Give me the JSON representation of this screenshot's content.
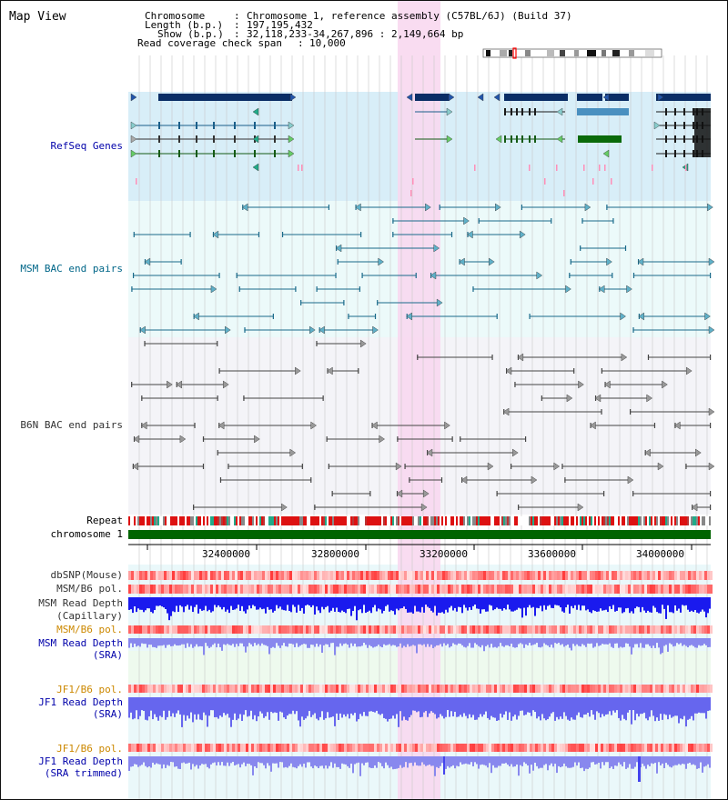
{
  "page": {
    "title": "Map View"
  },
  "header": {
    "chromosome_key": "Chromosome",
    "chromosome_value": "Chromosome 1, reference assembly (C57BL/6J) (Build 37)",
    "length_key": "Length (b.p.)",
    "length_value": "197,195,432",
    "show_key": "Show (b.p.)",
    "show_value": "32,118,233-34,267,896 : 2,149,664 bp",
    "coverage_key": "Read coverage check span",
    "coverage_value": "10,000"
  },
  "tracks": {
    "refseq": "RefSeq Genes",
    "msm_bac": "MSM BAC end pairs",
    "b6n_bac": "B6N BAC end pairs",
    "repeat": "Repeat",
    "chromosome": "chromosome 1",
    "dbsnp": "dbSNP(Mouse)",
    "msm_b6_pol_1": "MSM/B6 pol.",
    "msm_depth_cap_1": "MSM Read Depth",
    "msm_depth_cap_2": "(Capillary)",
    "msm_b6_pol_2": "MSM/B6 pol.",
    "msm_depth_sra_1": "MSM Read Depth",
    "msm_depth_sra_2": "(SRA)",
    "jf1_b6_pol_1": "JF1/B6 pol.",
    "jf1_depth_sra_1": "JF1 Read Depth",
    "jf1_depth_sra_2": "(SRA)",
    "jf1_b6_pol_2": "JF1/B6 pol.",
    "jf1_depth_trim_1": "JF1 Read Depth",
    "jf1_depth_trim_2": "(SRA trimmed)"
  },
  "axis": {
    "ticks": [
      "32400000",
      "32800000",
      "33200000",
      "33600000",
      "34000000"
    ]
  },
  "colors": {
    "refseq_label": "#0000aa",
    "msm_label": "#006688",
    "b6n_label": "#333333",
    "orange_label": "#cc8800",
    "blue_label": "#0000aa",
    "highlight": "#f8d8f0",
    "chromosome_bar": "#006400"
  }
}
